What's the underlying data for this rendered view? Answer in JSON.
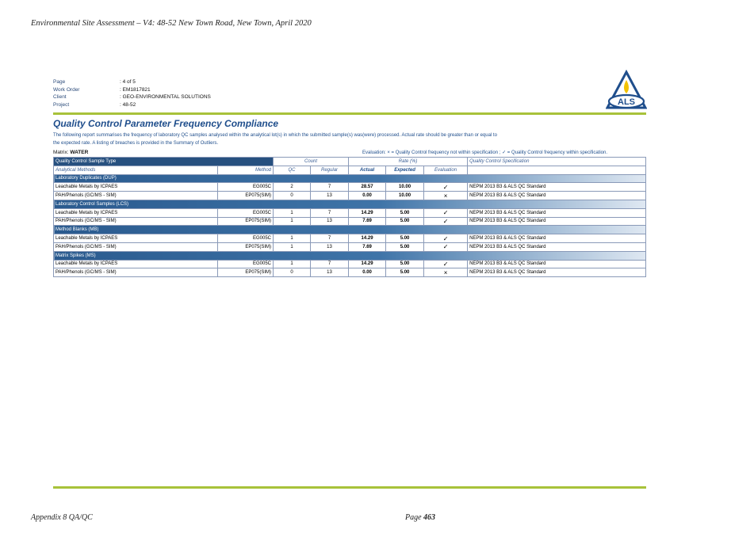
{
  "doc": {
    "header": "Environmental Site Assessment – V4: 48-52 New Town Road, New Town, April 2020",
    "footer_left": "Appendix 8 QA/QC",
    "footer_page_label": "Page",
    "footer_page_number": "463"
  },
  "meta": [
    {
      "key": "Page",
      "value": ": 4 of 5"
    },
    {
      "key": "Work Order",
      "value": ": EM1817821"
    },
    {
      "key": "Client",
      "value": ": GEO-ENVIRONMENTAL SOLUTIONS"
    },
    {
      "key": "Project",
      "value": ": 48-52"
    }
  ],
  "logo": {
    "text": "ALS",
    "colors": {
      "navy": "#1f4e8c",
      "flame": "#f2c200"
    }
  },
  "report": {
    "title": "Quality Control Parameter Frequency Compliance",
    "intro_line1": "The following report summarises the frequency of laboratory QC samples analysed within the analytical lot(s) in which the submitted sample(s) was(were) processed. Actual rate should be greater than or equal to",
    "intro_line2": "the expected rate. A listing of breaches is provided in the Summary of Outliers.",
    "matrix_label": "Matrix:",
    "matrix_value": "WATER",
    "legend": "Evaluation: × = Quality Control frequency not within specification ; ✓ = Quality Control frequency within specification."
  },
  "table": {
    "header1": {
      "sample_type": "Quality Control Sample Type",
      "count": "Count",
      "rate": "Rate (%)",
      "spec": "Quality Control Specification"
    },
    "header2": {
      "methods": "Analytical Methods",
      "method": "Method",
      "qc": "QC",
      "regular": "Regular",
      "actual": "Actual",
      "expected": "Expected",
      "evaluation": "Evaluation"
    },
    "groups": [
      {
        "title": "Laboratory Duplicates (DUP)",
        "rows": [
          {
            "name": "Leachable Metals by ICPAES",
            "method": "EG005C",
            "qc": "2",
            "regular": "7",
            "actual": "28.57",
            "expected": "10.00",
            "eval": "✓",
            "spec": "NEPM 2013 B3 & ALS QC Standard"
          },
          {
            "name": "PAH/Phenols (GC/MS - SIM)",
            "method": "EP075(SIM)",
            "qc": "0",
            "regular": "13",
            "actual": "0.00",
            "expected": "10.00",
            "eval": "×",
            "spec": "NEPM 2013 B3 & ALS QC Standard"
          }
        ]
      },
      {
        "title": "Laboratory Control Samples (LCS)",
        "rows": [
          {
            "name": "Leachable Metals by ICPAES",
            "method": "EG005C",
            "qc": "1",
            "regular": "7",
            "actual": "14.29",
            "expected": "5.00",
            "eval": "✓",
            "spec": "NEPM 2013 B3 & ALS QC Standard"
          },
          {
            "name": "PAH/Phenols (GC/MS - SIM)",
            "method": "EP075(SIM)",
            "qc": "1",
            "regular": "13",
            "actual": "7.69",
            "expected": "5.00",
            "eval": "✓",
            "spec": "NEPM 2013 B3 & ALS QC Standard"
          }
        ]
      },
      {
        "title": "Method Blanks (MB)",
        "rows": [
          {
            "name": "Leachable Metals by ICPAES",
            "method": "EG005C",
            "qc": "1",
            "regular": "7",
            "actual": "14.29",
            "expected": "5.00",
            "eval": "✓",
            "spec": "NEPM 2013 B3 & ALS QC Standard"
          },
          {
            "name": "PAH/Phenols (GC/MS - SIM)",
            "method": "EP075(SIM)",
            "qc": "1",
            "regular": "13",
            "actual": "7.69",
            "expected": "5.00",
            "eval": "✓",
            "spec": "NEPM 2013 B3 & ALS QC Standard"
          }
        ]
      },
      {
        "title": "Matrix Spikes (MS)",
        "rows": [
          {
            "name": "Leachable Metals by ICPAES",
            "method": "EG005C",
            "qc": "1",
            "regular": "7",
            "actual": "14.29",
            "expected": "5.00",
            "eval": "✓",
            "spec": "NEPM 2013 B3 & ALS QC Standard"
          },
          {
            "name": "PAH/Phenols (GC/MS - SIM)",
            "method": "EP075(SIM)",
            "qc": "0",
            "regular": "13",
            "actual": "0.00",
            "expected": "5.00",
            "eval": "×",
            "spec": "NEPM 2013 B3 & ALS QC Standard"
          }
        ]
      }
    ]
  }
}
